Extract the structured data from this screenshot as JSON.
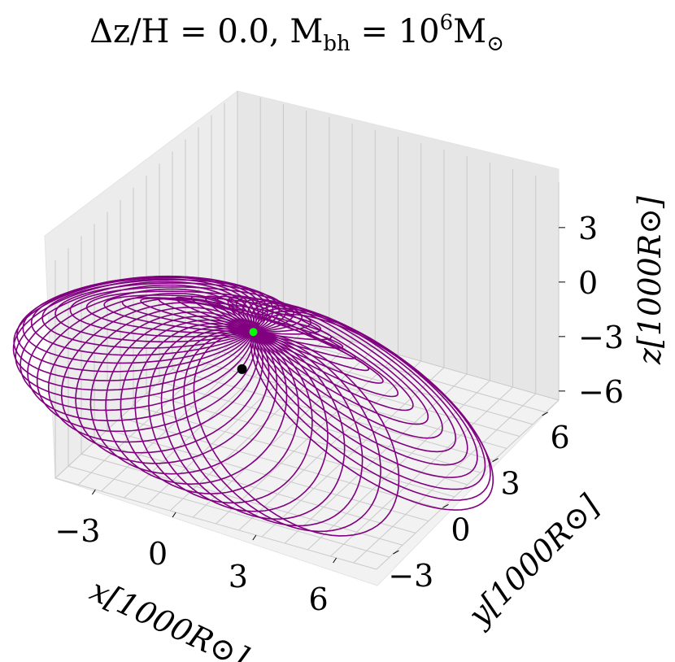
{
  "chart_data": {
    "type": "line",
    "projection": "3d",
    "title": "Δz/H = 0.0, M_bh = 10^6 M_⊙",
    "title_parts": {
      "lhs": "Δz/H = 0.0, M",
      "sub1": "bh",
      "mid": " = 10",
      "sup": "6",
      "rhs": "M",
      "sub2": "⊙"
    },
    "xlabel": "x[1000R⊙]",
    "ylabel": "y[1000R⊙]",
    "zlabel": "z[1000R⊙]",
    "x_ticks": [
      "−3",
      "0",
      "3",
      "6"
    ],
    "y_ticks": [
      "−3",
      "0",
      "3",
      "6"
    ],
    "z_ticks": [
      "3",
      "0",
      "−3",
      "−6"
    ],
    "xlim": [
      -4.5,
      7.5
    ],
    "ylim": [
      -4.0,
      7.0
    ],
    "zlim": [
      -6.5,
      5.5
    ],
    "grid": true,
    "series": [
      {
        "kind": "precessing-orbit",
        "color": "#800080",
        "n_loops": 42,
        "loop_semimajor": 4.2,
        "loop_eccentricity": 0.85,
        "precession_total_deg": 300,
        "pericenter": [
          0.3,
          0.2,
          0.0
        ]
      }
    ],
    "markers": [
      {
        "label": "black hole",
        "color": "#000000",
        "position": [
          0.0,
          0.0,
          -2.0
        ]
      },
      {
        "label": "pericenter",
        "color": "#00ff00",
        "position": [
          0.3,
          0.2,
          0.0
        ]
      }
    ]
  }
}
